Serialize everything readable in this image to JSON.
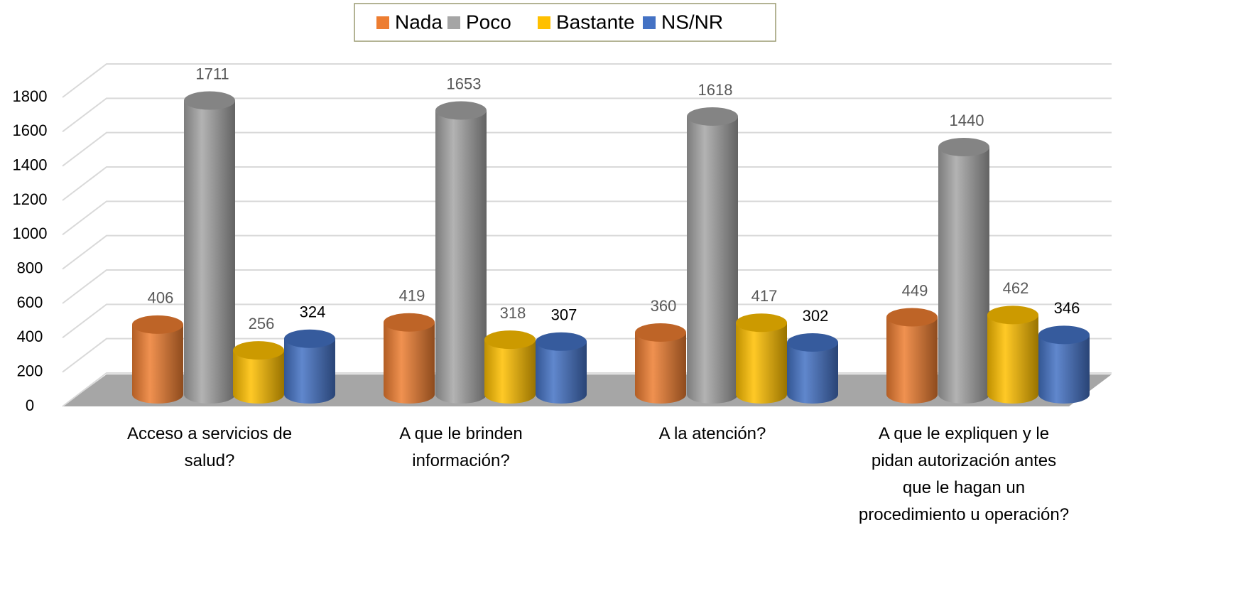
{
  "chart_data": {
    "type": "bar3d",
    "categories": [
      "Acceso a servicios de salud?",
      "A que le brinden información?",
      "A la atención?",
      "A que le expliquen y le pidan autorización antes que le hagan un procedimiento u operación?"
    ],
    "series": [
      {
        "name": "Nada",
        "color": "#ED7D31",
        "values": [
          406,
          419,
          360,
          449
        ]
      },
      {
        "name": "Poco",
        "color": "#A5A5A5",
        "values": [
          1711,
          1653,
          1618,
          1440
        ]
      },
      {
        "name": "Bastante",
        "color": "#FFC000",
        "values": [
          256,
          318,
          417,
          462
        ]
      },
      {
        "name": "NS/NR",
        "color": "#4472C4",
        "values": [
          324,
          307,
          302,
          346
        ]
      }
    ],
    "ylim": [
      0,
      1800
    ],
    "yticks": [
      0,
      200,
      400,
      600,
      800,
      1000,
      1200,
      1400,
      1600,
      1800
    ],
    "grid": true,
    "legend": "top"
  }
}
